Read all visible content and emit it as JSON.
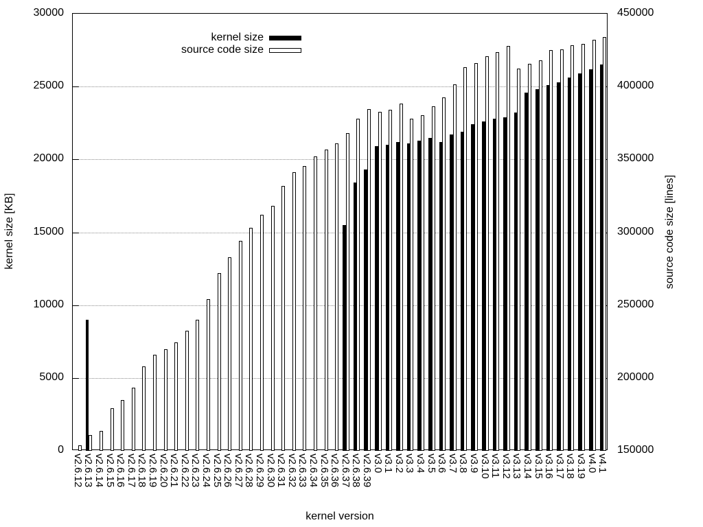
{
  "chart_data": {
    "type": "bar",
    "title": "",
    "xlabel": "kernel version",
    "ylabel_left": "kernel size [KB]",
    "ylabel_right": "source code size [lines]",
    "grid": "dotted horizontal gridlines at left-axis ticks",
    "legend_position": "top-inside-left",
    "y_left": {
      "min": 0,
      "max": 30000,
      "ticks": [
        0,
        5000,
        10000,
        15000,
        20000,
        25000,
        30000
      ]
    },
    "y_right": {
      "min": 150000,
      "max": 450000,
      "ticks": [
        150000,
        200000,
        250000,
        300000,
        350000,
        400000,
        450000
      ]
    },
    "categories": [
      "v2.6.12",
      "v2.6.13",
      "v2.6.14",
      "v2.6.15",
      "v2.6.16",
      "v2.6.17",
      "v2.6.18",
      "v2.6.19",
      "v2.6.20",
      "v2.6.21",
      "v2.6.22",
      "v2.6.23",
      "v2.6.24",
      "v2.6.25",
      "v2.6.26",
      "v2.6.27",
      "v2.6.28",
      "v2.6.29",
      "v2.6.30",
      "v2.6.31",
      "v2.6.32",
      "v2.6.33",
      "v2.6.34",
      "v2.6.35",
      "v2.6.36",
      "v2.6.37",
      "v2.6.38",
      "v2.6.39",
      "v3.0",
      "v3.1",
      "v3.2",
      "v3.3",
      "v3.4",
      "v3.5",
      "v3.6",
      "v3.7",
      "v3.8",
      "v3.9",
      "v3.10",
      "v3.11",
      "v3.12",
      "v3.13",
      "v3.14",
      "v3.15",
      "v3.16",
      "v3.17",
      "v3.18",
      "v3.19",
      "v4.0",
      "v4.1"
    ],
    "series": [
      {
        "name": "kernel size",
        "axis": "left",
        "unit": "KB",
        "style": "filled-black",
        "values": [
          0,
          9000,
          0,
          0,
          0,
          0,
          0,
          0,
          0,
          0,
          0,
          0,
          0,
          0,
          0,
          0,
          0,
          0,
          0,
          0,
          0,
          0,
          0,
          0,
          0,
          15500,
          18400,
          19300,
          20900,
          21000,
          21200,
          21100,
          21300,
          21500,
          21200,
          21700,
          21900,
          22400,
          22600,
          22800,
          22900,
          23200,
          24600,
          24800,
          25100,
          25300,
          25600,
          25900,
          26200,
          26500
        ]
      },
      {
        "name": "source code size",
        "axis": "right",
        "unit": "lines",
        "style": "white-black-outline",
        "values": [
          154000,
          161000,
          163500,
          179000,
          185000,
          193500,
          208000,
          216000,
          219500,
          224500,
          232500,
          240000,
          254000,
          272000,
          283000,
          294000,
          303000,
          312000,
          318000,
          332000,
          341000,
          345500,
          352000,
          357000,
          361000,
          368000,
          378000,
          384500,
          382500,
          384000,
          388500,
          378000,
          380500,
          386500,
          392500,
          401500,
          413500,
          416000,
          421000,
          423500,
          428000,
          412500,
          415500,
          418000,
          425000,
          425500,
          428500,
          429500,
          432000,
          434000
        ]
      }
    ]
  }
}
